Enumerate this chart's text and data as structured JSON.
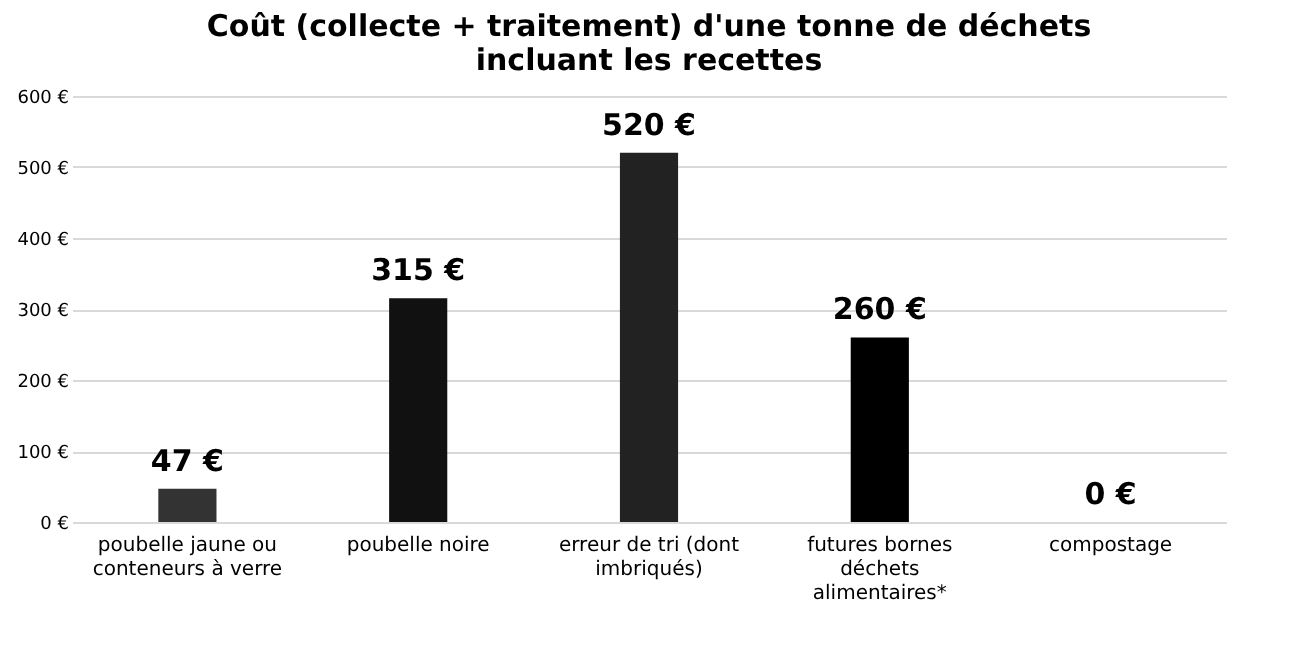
{
  "chart_data": {
    "type": "bar",
    "title": "Coût (collecte + traitement) d'une tonne de déchets\nincluant les recettes",
    "categories": [
      "poubelle jaune ou conteneurs à verre",
      "poubelle noire",
      "erreur de tri (dont imbriqués)",
      "futures bornes déchets alimentaires*",
      "compostage"
    ],
    "values": [
      47,
      315,
      520,
      260,
      0
    ],
    "value_labels": [
      "47 €",
      "315 €",
      "520 €",
      "260 €",
      "0 €"
    ],
    "colors": [
      "#333333",
      "#111111",
      "#222222",
      "#000000",
      "#000000"
    ],
    "ylim": [
      0,
      600
    ],
    "yticks": [
      {
        "value": 0,
        "label": "0 €"
      },
      {
        "value": 100,
        "label": "100 €"
      },
      {
        "value": 200,
        "label": "200 €"
      },
      {
        "value": 300,
        "label": "300 €"
      },
      {
        "value": 400,
        "label": "400 €"
      },
      {
        "value": 500,
        "label": "500 €"
      },
      {
        "value": 600,
        "label": "600 €"
      }
    ],
    "grid": "y"
  }
}
